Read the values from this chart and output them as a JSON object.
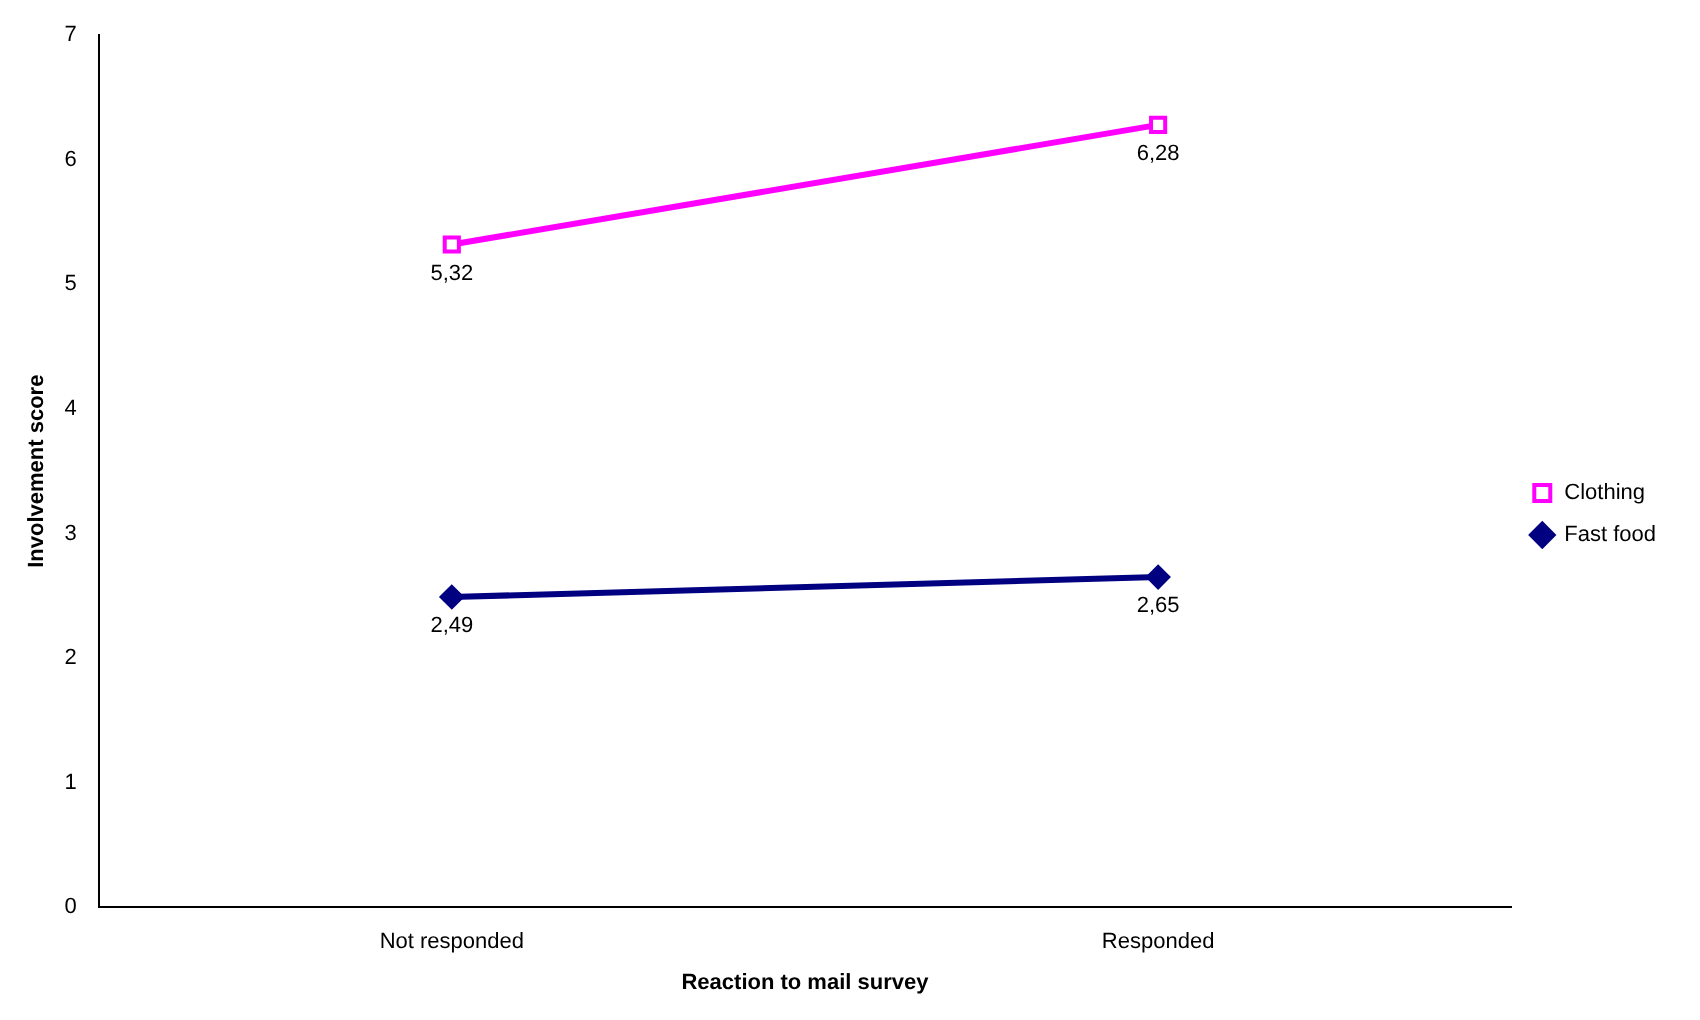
{
  "chart_data": {
    "type": "line",
    "xlabel": "Reaction to mail survey",
    "ylabel": "Involvement score",
    "categories": [
      "Not responded",
      "Responded"
    ],
    "series": [
      {
        "name": "Clothing",
        "color": "#ff00ff",
        "values": [
          5.32,
          6.28
        ],
        "value_labels": [
          "5,32",
          "6,28"
        ],
        "marker": "square"
      },
      {
        "name": "Fast food",
        "color": "#000080",
        "values": [
          2.49,
          2.65
        ],
        "value_labels": [
          "2,49",
          "2,65"
        ],
        "marker": "diamond"
      }
    ],
    "ylim": [
      0,
      7
    ],
    "yticks": [
      0,
      1,
      2,
      3,
      4,
      5,
      6,
      7
    ],
    "grid": false,
    "legend": "right",
    "line_style": "solid"
  }
}
